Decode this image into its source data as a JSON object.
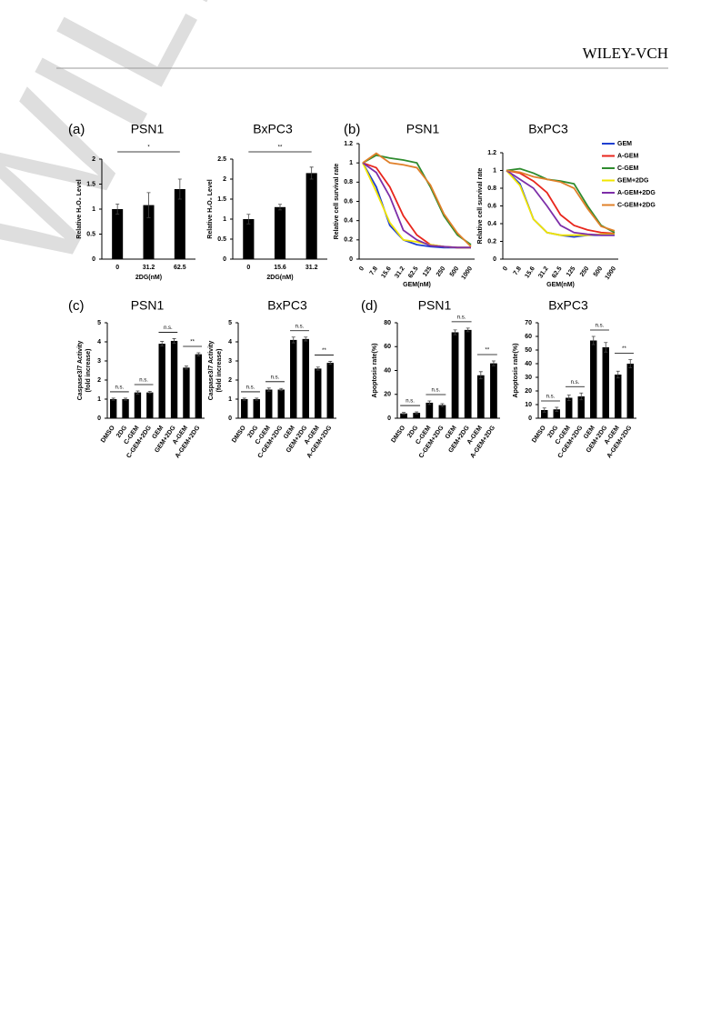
{
  "header": {
    "publisher": "WILEY-VCH"
  },
  "watermark": "WILEY",
  "panels": [
    "(a)",
    "(b)",
    "(c)",
    "(d)"
  ],
  "chart_data": [
    {
      "type": "bar",
      "title": "PSN1",
      "ylabel": "Relative H₂O₂ Level",
      "xlabel": "2DG(nM)",
      "categories": [
        "0",
        "31.2",
        "62.5"
      ],
      "values": [
        1.0,
        1.08,
        1.4
      ],
      "errors": [
        0.1,
        0.25,
        0.2
      ],
      "color": "#000000",
      "ylim": [
        0,
        2
      ],
      "yticks": [
        0,
        0.5,
        1,
        1.5,
        2
      ],
      "annotations": [
        {
          "text": "*",
          "from": 0,
          "to": 2
        }
      ]
    },
    {
      "type": "bar",
      "title": "BxPC3",
      "ylabel": "Relative H₂O₂ Level",
      "xlabel": "2DG(nM)",
      "categories": [
        "0",
        "15.6",
        "31.2"
      ],
      "values": [
        1.0,
        1.3,
        2.15
      ],
      "errors": [
        0.12,
        0.07,
        0.15
      ],
      "color": "#000000",
      "ylim": [
        0,
        2.5
      ],
      "yticks": [
        0,
        0.5,
        1,
        1.5,
        2,
        2.5
      ],
      "annotations": [
        {
          "text": "**",
          "from": 0,
          "to": 2
        }
      ]
    },
    {
      "type": "line",
      "title": "PSN1",
      "ylabel": "Relative cell survival rate",
      "xlabel": "GEM(nM)",
      "categories": [
        "0",
        "7.8",
        "15.6",
        "31.2",
        "62.5",
        "125",
        "250",
        "500",
        "1000"
      ],
      "ylim": [
        0,
        1.2
      ],
      "yticks": [
        0,
        0.2,
        0.4,
        0.6,
        0.8,
        1,
        1.2
      ],
      "series": [
        {
          "color": "#1f3fd0",
          "values": [
            1.0,
            0.75,
            0.35,
            0.2,
            0.15,
            0.13,
            0.12,
            0.12,
            0.12
          ]
        },
        {
          "color": "#e8261c",
          "values": [
            1.0,
            0.95,
            0.75,
            0.45,
            0.25,
            0.15,
            0.13,
            0.12,
            0.12
          ]
        },
        {
          "color": "#2e8b2e",
          "values": [
            1.0,
            1.08,
            1.05,
            1.03,
            1.0,
            0.75,
            0.45,
            0.25,
            0.15
          ]
        },
        {
          "color": "#f2e600",
          "values": [
            1.0,
            0.7,
            0.38,
            0.2,
            0.18,
            0.15,
            0.13,
            0.12,
            0.12
          ]
        },
        {
          "color": "#7d2ea8",
          "values": [
            1.0,
            0.9,
            0.65,
            0.3,
            0.2,
            0.14,
            0.13,
            0.12,
            0.12
          ]
        },
        {
          "color": "#e0802a",
          "values": [
            1.0,
            1.1,
            1.0,
            0.98,
            0.95,
            0.77,
            0.47,
            0.27,
            0.13
          ]
        }
      ]
    },
    {
      "type": "line",
      "title": "BxPC3",
      "ylabel": "Relative cell survival rate",
      "xlabel": "GEM(nM)",
      "categories": [
        "0",
        "7.8",
        "15.6",
        "31.2",
        "62.5",
        "125",
        "250",
        "500",
        "1000"
      ],
      "ylim": [
        0,
        1.2
      ],
      "yticks": [
        0,
        0.2,
        0.4,
        0.6,
        0.8,
        1,
        1.2
      ],
      "legend": "right",
      "series": [
        {
          "name": "GEM",
          "color": "#1f3fd0",
          "values": [
            1.0,
            0.85,
            0.45,
            0.3,
            0.27,
            0.25,
            0.27,
            0.27,
            0.27
          ]
        },
        {
          "name": "A-GEM",
          "color": "#e8261c",
          "values": [
            1.0,
            0.97,
            0.88,
            0.75,
            0.5,
            0.38,
            0.33,
            0.3,
            0.29
          ]
        },
        {
          "name": "C-GEM",
          "color": "#2e8b2e",
          "values": [
            1.0,
            1.02,
            0.97,
            0.9,
            0.88,
            0.85,
            0.6,
            0.38,
            0.3
          ]
        },
        {
          "name": "GEM+2DG",
          "color": "#f2e600",
          "values": [
            1.0,
            0.83,
            0.45,
            0.3,
            0.27,
            0.27,
            0.27,
            0.28,
            0.28
          ]
        },
        {
          "name": "A-GEM+2DG",
          "color": "#7d2ea8",
          "values": [
            1.0,
            0.9,
            0.8,
            0.6,
            0.38,
            0.3,
            0.28,
            0.27,
            0.27
          ]
        },
        {
          "name": "C-GEM+2DG",
          "color": "#e0802a",
          "values": [
            1.0,
            0.98,
            0.93,
            0.9,
            0.87,
            0.8,
            0.57,
            0.37,
            0.32
          ]
        }
      ]
    },
    {
      "type": "bar",
      "title": "PSN1",
      "ylabel": [
        "Caspase3/7 Activity",
        "(fold increase)"
      ],
      "categories": [
        "DMSO",
        "2DG",
        "C-GEM",
        "C-GEM+2DG",
        "GEM",
        "GEM+2DG",
        "A-GEM",
        "A-GEM+2DG"
      ],
      "values": [
        1.0,
        1.0,
        1.35,
        1.35,
        3.9,
        4.05,
        2.65,
        3.35
      ],
      "errors": [
        0.05,
        0.05,
        0.08,
        0.06,
        0.12,
        0.12,
        0.08,
        0.08
      ],
      "color": "#000000",
      "ylim": [
        0,
        5
      ],
      "yticks": [
        0,
        1,
        2,
        3,
        4,
        5
      ],
      "annotations": [
        {
          "text": "n.s.",
          "from": 0,
          "to": 1
        },
        {
          "text": "n.s.",
          "from": 2,
          "to": 3
        },
        {
          "text": "n.s.",
          "from": 4,
          "to": 5
        },
        {
          "text": "**",
          "from": 6,
          "to": 7
        }
      ]
    },
    {
      "type": "bar",
      "title": "BxPC3",
      "ylabel": [
        "Caspase3/7 Activity",
        "(fold increase)"
      ],
      "categories": [
        "DMSO",
        "2DG",
        "C-GEM",
        "C-GEM+2DG",
        "GEM",
        "GEM+2DG",
        "A-GEM",
        "A-GEM+2DG"
      ],
      "values": [
        1.0,
        1.0,
        1.5,
        1.5,
        4.1,
        4.15,
        2.6,
        2.9
      ],
      "errors": [
        0.05,
        0.05,
        0.08,
        0.06,
        0.15,
        0.1,
        0.08,
        0.08
      ],
      "color": "#000000",
      "ylim": [
        0,
        5
      ],
      "yticks": [
        0,
        1,
        2,
        3,
        4,
        5
      ],
      "annotations": [
        {
          "text": "n.s.",
          "from": 0,
          "to": 1
        },
        {
          "text": "n.s.",
          "from": 2,
          "to": 3
        },
        {
          "text": "n.s.",
          "from": 4,
          "to": 5
        },
        {
          "text": "**",
          "from": 6,
          "to": 7
        }
      ]
    },
    {
      "type": "bar",
      "title": "PSN1",
      "ylabel": "Apoptosis rate(%)",
      "categories": [
        "DMSO",
        "2DG",
        "C-GEM",
        "C-GEM+2DG",
        "GEM",
        "GEM+2DG",
        "A-GEM",
        "A-GEM+2DG"
      ],
      "values": [
        4,
        4.5,
        13,
        11,
        72,
        74,
        36,
        46
      ],
      "errors": [
        0.8,
        0.8,
        1.5,
        1.2,
        2,
        1.5,
        3,
        2
      ],
      "color": "#000000",
      "ylim": [
        0,
        80
      ],
      "yticks": [
        0,
        20,
        40,
        60,
        80
      ],
      "annotations": [
        {
          "text": "n.s.",
          "from": 0,
          "to": 1
        },
        {
          "text": "n.s.",
          "from": 2,
          "to": 3
        },
        {
          "text": "n.s.",
          "from": 4,
          "to": 5
        },
        {
          "text": "**",
          "from": 6,
          "to": 7
        }
      ]
    },
    {
      "type": "bar",
      "title": "BxPC3",
      "ylabel": "Apoptosis rate(%)",
      "categories": [
        "DMSO",
        "2DG",
        "C-GEM",
        "C-GEM+2DG",
        "GEM",
        "GEM+2DG",
        "A-GEM",
        "A-GEM+2DG"
      ],
      "values": [
        6,
        6.5,
        15,
        16,
        57,
        52,
        32,
        40
      ],
      "errors": [
        1.5,
        1.5,
        2,
        2.5,
        3,
        3.5,
        2.5,
        3
      ],
      "color": "#000000",
      "ylim": [
        0,
        70
      ],
      "yticks": [
        0,
        10,
        20,
        30,
        40,
        50,
        60,
        70
      ],
      "annotations": [
        {
          "text": "n.s.",
          "from": 0,
          "to": 1
        },
        {
          "text": "n.s.",
          "from": 2,
          "to": 3
        },
        {
          "text": "n.s.",
          "from": 4,
          "to": 5
        },
        {
          "text": "**",
          "from": 6,
          "to": 7
        }
      ]
    }
  ]
}
